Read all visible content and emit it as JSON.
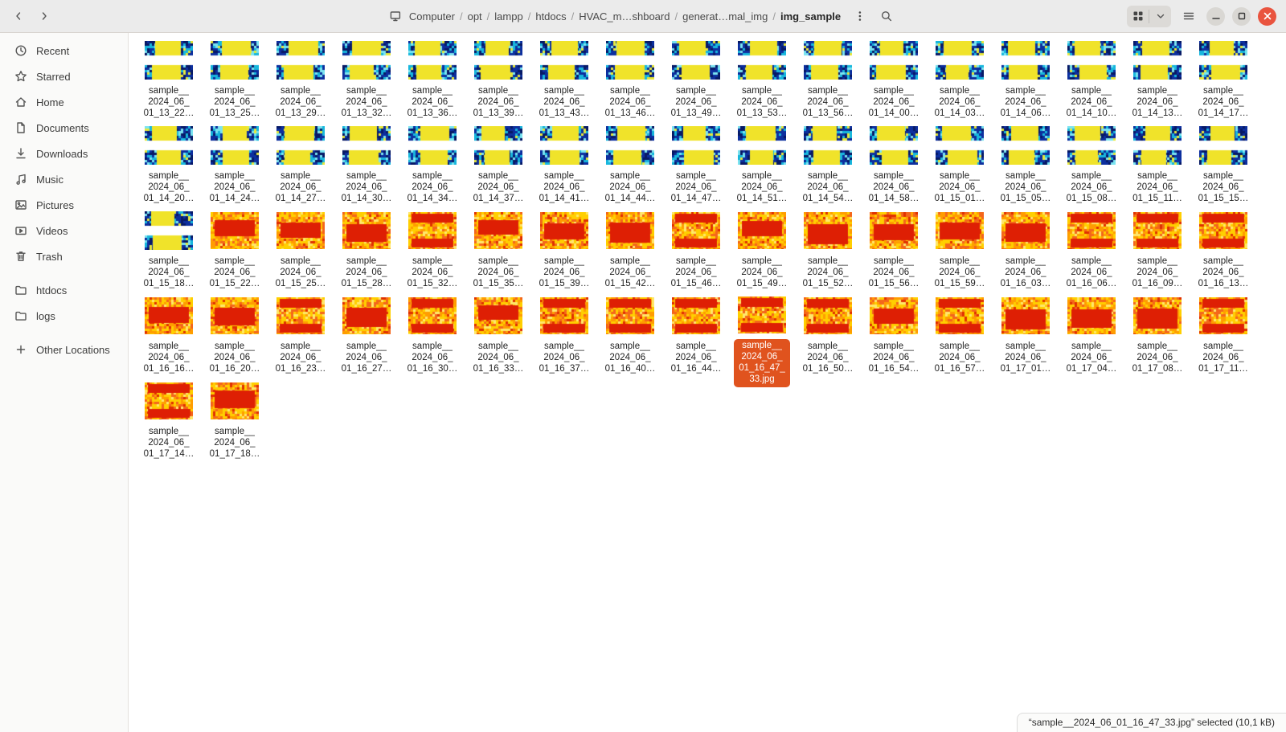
{
  "titlebar": {
    "breadcrumb": {
      "segments": [
        "Computer",
        "opt",
        "lampp",
        "htdocs",
        "HVAC_m…shboard",
        "generat…mal_img",
        "img_sample"
      ],
      "current_index": 6,
      "separator": "/",
      "leading_icon": "computer-icon"
    },
    "icons": {
      "back": "chevron-left-icon",
      "forward": "chevron-right-icon",
      "path_menu": "kebab-icon",
      "search": "search-icon",
      "view": "grid-view-icon",
      "view_menu": "chevron-down-icon",
      "menu": "hamburger-icon",
      "minimize": "minimize-icon",
      "maximize": "maximize-icon",
      "close": "close-icon"
    }
  },
  "sidebar": {
    "groups": [
      {
        "items": [
          {
            "label": "Recent",
            "icon": "clock-icon"
          },
          {
            "label": "Starred",
            "icon": "star-icon"
          },
          {
            "label": "Home",
            "icon": "home-icon"
          },
          {
            "label": "Documents",
            "icon": "document-icon"
          },
          {
            "label": "Downloads",
            "icon": "download-icon"
          },
          {
            "label": "Music",
            "icon": "music-icon"
          },
          {
            "label": "Pictures",
            "icon": "picture-icon"
          },
          {
            "label": "Videos",
            "icon": "video-icon"
          },
          {
            "label": "Trash",
            "icon": "trash-icon"
          }
        ]
      },
      {
        "items": [
          {
            "label": "htdocs",
            "icon": "folder-icon"
          },
          {
            "label": "logs",
            "icon": "folder-icon"
          }
        ]
      },
      {
        "items": [
          {
            "label": "Other Locations",
            "icon": "plus-icon"
          }
        ]
      }
    ]
  },
  "files": {
    "common_lines": [
      "sample__",
      "2024_06_"
    ],
    "items": [
      {
        "line": "01_13_22…",
        "style": "blue"
      },
      {
        "line": "01_13_25…",
        "style": "blue"
      },
      {
        "line": "01_13_29…",
        "style": "blue"
      },
      {
        "line": "01_13_32…",
        "style": "blue"
      },
      {
        "line": "01_13_36…",
        "style": "blue"
      },
      {
        "line": "01_13_39…",
        "style": "blue"
      },
      {
        "line": "01_13_43…",
        "style": "blue"
      },
      {
        "line": "01_13_46…",
        "style": "blue"
      },
      {
        "line": "01_13_49…",
        "style": "blue"
      },
      {
        "line": "01_13_53…",
        "style": "blue"
      },
      {
        "line": "01_13_56…",
        "style": "blue"
      },
      {
        "line": "01_14_00…",
        "style": "blue"
      },
      {
        "line": "01_14_03…",
        "style": "blue"
      },
      {
        "line": "01_14_06…",
        "style": "blue"
      },
      {
        "line": "01_14_10…",
        "style": "blue"
      },
      {
        "line": "01_14_13…",
        "style": "blue"
      },
      {
        "line": "01_14_17…",
        "style": "blue"
      },
      {
        "line": "01_14_20…",
        "style": "blue"
      },
      {
        "line": "01_14_24…",
        "style": "blue"
      },
      {
        "line": "01_14_27…",
        "style": "blue"
      },
      {
        "line": "01_14_30…",
        "style": "blue"
      },
      {
        "line": "01_14_34…",
        "style": "blue"
      },
      {
        "line": "01_14_37…",
        "style": "blue"
      },
      {
        "line": "01_14_41…",
        "style": "blue"
      },
      {
        "line": "01_14_44…",
        "style": "blue"
      },
      {
        "line": "01_14_47…",
        "style": "blue"
      },
      {
        "line": "01_14_51…",
        "style": "blue"
      },
      {
        "line": "01_14_54…",
        "style": "blue"
      },
      {
        "line": "01_14_58…",
        "style": "blue"
      },
      {
        "line": "01_15_01…",
        "style": "blue"
      },
      {
        "line": "01_15_05…",
        "style": "blue"
      },
      {
        "line": "01_15_08…",
        "style": "blue"
      },
      {
        "line": "01_15_11…",
        "style": "blue"
      },
      {
        "line": "01_15_15…",
        "style": "blue"
      },
      {
        "line": "01_15_18…",
        "style": "blue"
      },
      {
        "line": "01_15_22…",
        "style": "orange"
      },
      {
        "line": "01_15_25…",
        "style": "orange"
      },
      {
        "line": "01_15_28…",
        "style": "orange"
      },
      {
        "line": "01_15_32…",
        "style": "orange"
      },
      {
        "line": "01_15_35…",
        "style": "orange"
      },
      {
        "line": "01_15_39…",
        "style": "orange"
      },
      {
        "line": "01_15_42…",
        "style": "orange"
      },
      {
        "line": "01_15_46…",
        "style": "orange"
      },
      {
        "line": "01_15_49…",
        "style": "orange"
      },
      {
        "line": "01_15_52…",
        "style": "orange"
      },
      {
        "line": "01_15_56…",
        "style": "orange"
      },
      {
        "line": "01_15_59…",
        "style": "orange"
      },
      {
        "line": "01_16_03…",
        "style": "orange"
      },
      {
        "line": "01_16_06…",
        "style": "orange"
      },
      {
        "line": "01_16_09…",
        "style": "orange"
      },
      {
        "line": "01_16_13…",
        "style": "orange"
      },
      {
        "line": "01_16_16…",
        "style": "orange"
      },
      {
        "line": "01_16_20…",
        "style": "orange"
      },
      {
        "line": "01_16_23…",
        "style": "orange"
      },
      {
        "line": "01_16_27…",
        "style": "orange"
      },
      {
        "line": "01_16_30…",
        "style": "orange"
      },
      {
        "line": "01_16_33…",
        "style": "orange"
      },
      {
        "line": "01_16_37…",
        "style": "orange"
      },
      {
        "line": "01_16_40…",
        "style": "orange"
      },
      {
        "line": "01_16_44…",
        "style": "orange"
      },
      {
        "lines": [
          "sample__",
          "2024_06_",
          "01_16_47_",
          "33.jpg"
        ],
        "style": "orange",
        "selected": true,
        "full_name": "sample__2024_06_01_16_47_33.jpg"
      },
      {
        "line": "01_16_50…",
        "style": "orange"
      },
      {
        "line": "01_16_54…",
        "style": "orange"
      },
      {
        "line": "01_16_57…",
        "style": "orange"
      },
      {
        "line": "01_17_01…",
        "style": "orange"
      },
      {
        "line": "01_17_04…",
        "style": "orange"
      },
      {
        "line": "01_17_08…",
        "style": "orange"
      },
      {
        "line": "01_17_11…",
        "style": "orange"
      },
      {
        "line": "01_17_14…",
        "style": "orange"
      },
      {
        "line": "01_17_18…",
        "style": "orange"
      }
    ]
  },
  "statusbar": {
    "text": "“sample__2024_06_01_16_47_33.jpg” selected (10,1 kB)"
  },
  "colors": {
    "accent": "#e0531e",
    "selection_text": "#ffffff",
    "titlebar_bg": "#ebebeb",
    "sidebar_bg": "#fafaf9"
  }
}
